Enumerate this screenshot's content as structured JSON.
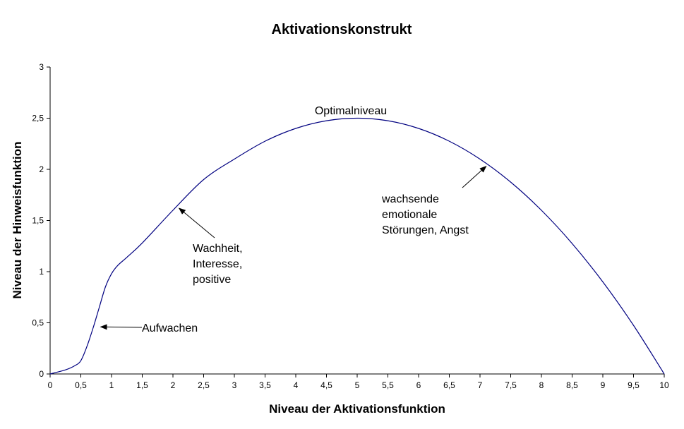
{
  "chart_data": {
    "type": "line",
    "title": "Aktivationskonstrukt",
    "xlabel": "Niveau der Aktivationsfunktion",
    "ylabel": "Niveau der Hinweisfunktion",
    "xlim": [
      0,
      10
    ],
    "ylim": [
      0,
      3
    ],
    "xticks": [
      "0",
      "0,5",
      "1",
      "1,5",
      "2",
      "2,5",
      "3",
      "3,5",
      "4",
      "4,5",
      "5",
      "5,5",
      "6",
      "6,5",
      "7",
      "7,5",
      "8",
      "8,5",
      "9",
      "9,5",
      "10"
    ],
    "yticks": [
      "0",
      "0,5",
      "1",
      "1,5",
      "2",
      "2,5",
      "3"
    ],
    "grid": false,
    "line_color": "#000080",
    "x": [
      0,
      0.25,
      0.4,
      0.5,
      0.6,
      0.7,
      0.8,
      0.9,
      1,
      1.1,
      1.25,
      1.5,
      2,
      2.5,
      3,
      3.5,
      4,
      4.5,
      5,
      5.5,
      6,
      6.5,
      7,
      7.5,
      8,
      8.5,
      9,
      9.5,
      10
    ],
    "y": [
      0,
      0.04,
      0.08,
      0.13,
      0.27,
      0.45,
      0.65,
      0.85,
      0.98,
      1.06,
      1.14,
      1.28,
      1.6,
      1.9,
      2.1,
      2.275,
      2.4,
      2.475,
      2.5,
      2.475,
      2.4,
      2.275,
      2.1,
      1.875,
      1.6,
      1.275,
      0.9,
      0.475,
      0
    ],
    "annotations": [
      {
        "text": [
          "Optimalniveau"
        ],
        "x": 5,
        "y": 2.5
      },
      {
        "text": [
          "Aufwachen"
        ],
        "x": 0.8,
        "y": 0.46,
        "arrow": true
      },
      {
        "text": [
          "Wachheit,",
          "Interesse,",
          "positive"
        ],
        "x": 2.1,
        "y": 1.62,
        "arrow": true
      },
      {
        "text": [
          "wachsende",
          "emotionale",
          "Störungen, Angst"
        ],
        "x": 7.1,
        "y": 2.03,
        "arrow": true
      }
    ]
  }
}
